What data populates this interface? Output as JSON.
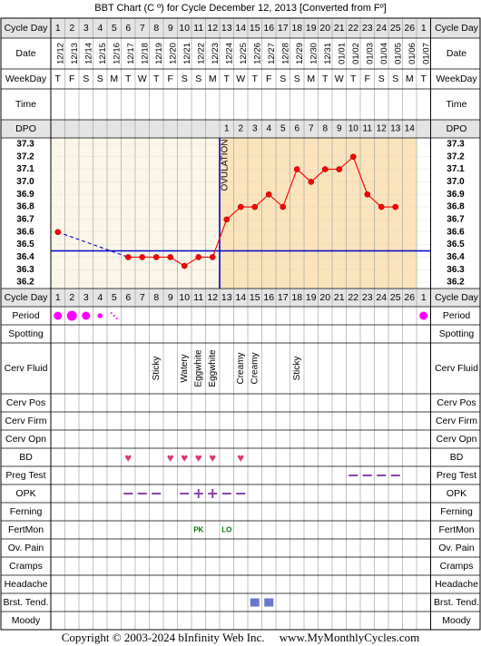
{
  "header": {
    "title": "BBT Chart (C º) for Cycle December 12, 2013  [Converted from Fº]"
  },
  "footer": {
    "copyright": "Copyright © 2003-2024 bInfinity Web Inc.",
    "site": "www.MyMonthlyCycles.com"
  },
  "colors": {
    "grid": "#000000",
    "follicular_bg": "#fcf6e8",
    "luteal_bg": "#fbe4bc",
    "header_bg": "#e4e4e4",
    "temp_line": "#ff0000",
    "temp_point": "#ff0000",
    "coverline": "#0000cc",
    "period": "#ff00ff",
    "bd_heart": "#dd3377",
    "opk": "#8844aa",
    "preg_test": "#8844aa",
    "fertmon": "#007700",
    "breast": "#6677cc"
  },
  "labels": {
    "cycle_day": "Cycle Day",
    "date": "Date",
    "weekday": "WeekDay",
    "time": "Time",
    "dpo": "DPO",
    "period": "Period",
    "spotting": "Spotting",
    "cerv_fluid": "Cerv Fluid",
    "cerv_pos": "Cerv Pos",
    "cerv_firm": "Cerv Firm",
    "cerv_opn": "Cerv Opn",
    "bd": "BD",
    "preg_test": "Preg Test",
    "opk": "OPK",
    "ferning": "Ferning",
    "fertmon": "FertMon",
    "ov_pain": "Ov. Pain",
    "cramps": "Cramps",
    "headache": "Headache",
    "brst_tend": "Brst. Tend.",
    "moody": "Moody",
    "ovulation": "OVULATION"
  },
  "chart_data": {
    "type": "line",
    "title": "BBT Chart (C º) for Cycle December 12, 2013  [Converted from Fº]",
    "ylabel": "",
    "xlabel": "Cycle Day",
    "ylim": [
      36.15,
      37.35
    ],
    "y_ticks": [
      "37.3",
      "37.2",
      "37.1",
      "37.0",
      "36.9",
      "36.8",
      "36.7",
      "36.6",
      "36.5",
      "36.4",
      "36.3",
      "36.2"
    ],
    "cycle_days": [
      "1",
      "2",
      "3",
      "4",
      "5",
      "6",
      "7",
      "8",
      "9",
      "10",
      "11",
      "12",
      "13",
      "14",
      "15",
      "16",
      "17",
      "18",
      "19",
      "20",
      "21",
      "22",
      "23",
      "24",
      "25",
      "26",
      "1"
    ],
    "dates": [
      "12/12",
      "12/13",
      "12/14",
      "12/15",
      "12/16",
      "12/17",
      "12/18",
      "12/19",
      "12/20",
      "12/21",
      "12/22",
      "12/23",
      "12/24",
      "12/25",
      "12/26",
      "12/27",
      "12/28",
      "12/29",
      "12/30",
      "12/31",
      "01/01",
      "01/02",
      "01/03",
      "01/04",
      "01/05",
      "01/06",
      "01/07"
    ],
    "weekdays": [
      "T",
      "F",
      "S",
      "S",
      "M",
      "T",
      "W",
      "T",
      "F",
      "S",
      "S",
      "M",
      "T",
      "W",
      "T",
      "F",
      "S",
      "S",
      "M",
      "T",
      "W",
      "T",
      "F",
      "S",
      "S",
      "M",
      "T"
    ],
    "dpo": [
      "",
      "",
      "",
      "",
      "",
      "",
      "",
      "",
      "",
      "",
      "",
      "",
      "1",
      "2",
      "3",
      "4",
      "5",
      "6",
      "7",
      "8",
      "9",
      "10",
      "11",
      "12",
      "13",
      "14",
      ""
    ],
    "temps": [
      36.6,
      null,
      null,
      null,
      null,
      36.4,
      36.4,
      36.4,
      36.4,
      36.33,
      36.4,
      36.4,
      36.7,
      36.8,
      36.8,
      36.9,
      36.8,
      37.1,
      37.0,
      37.1,
      37.1,
      37.2,
      36.9,
      36.8,
      36.8,
      null,
      null
    ],
    "coverline": 36.45,
    "ovulation_day": 12,
    "period": [
      "medium",
      "heavy",
      "medium",
      "light",
      "spotting",
      "",
      "",
      "",
      "",
      "",
      "",
      "",
      "",
      "",
      "",
      "",
      "",
      "",
      "",
      "",
      "",
      "",
      "",
      "",
      "",
      "",
      "medium"
    ],
    "cerv_fluid": [
      "",
      "",
      "",
      "",
      "",
      "",
      "",
      "Sticky",
      "",
      "Watery",
      "Eggwhite",
      "Eggwhite",
      "",
      "Creamy",
      "Creamy",
      "",
      "",
      "Sticky",
      "",
      "",
      "",
      "",
      "",
      "",
      "",
      "",
      ""
    ],
    "bd": [
      false,
      false,
      false,
      false,
      false,
      true,
      false,
      false,
      true,
      true,
      true,
      true,
      false,
      true,
      false,
      false,
      false,
      false,
      false,
      false,
      false,
      false,
      false,
      false,
      false,
      false,
      false
    ],
    "preg_test": [
      "",
      "",
      "",
      "",
      "",
      "",
      "",
      "",
      "",
      "",
      "",
      "",
      "",
      "",
      "",
      "",
      "",
      "",
      "",
      "",
      "",
      "negative",
      "negative",
      "negative",
      "negative",
      "",
      ""
    ],
    "opk": [
      "",
      "",
      "",
      "",
      "",
      "negative",
      "negative",
      "negative",
      "",
      "negative",
      "positive",
      "positive",
      "negative",
      "negative",
      "",
      "",
      "",
      "",
      "",
      "",
      "",
      "",
      "",
      "",
      "",
      "",
      ""
    ],
    "fertmon": [
      "",
      "",
      "",
      "",
      "",
      "",
      "",
      "",
      "",
      "",
      "PK",
      "",
      "LO",
      "",
      "",
      "",
      "",
      "",
      "",
      "",
      "",
      "",
      "",
      "",
      "",
      "",
      ""
    ],
    "brst_tend": [
      false,
      false,
      false,
      false,
      false,
      false,
      false,
      false,
      false,
      false,
      false,
      false,
      false,
      false,
      true,
      true,
      false,
      false,
      false,
      false,
      false,
      false,
      false,
      false,
      false,
      false,
      false
    ]
  }
}
